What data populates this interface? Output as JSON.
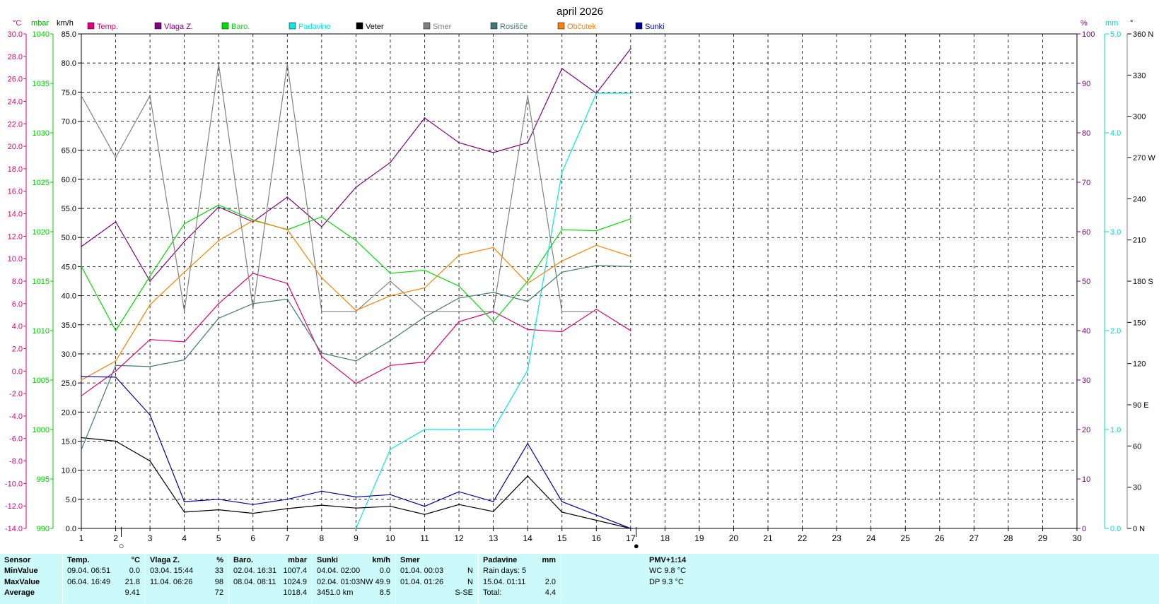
{
  "chart_data": {
    "type": "line",
    "title": "april 2026",
    "x": [
      1,
      2,
      3,
      4,
      5,
      6,
      7,
      8,
      9,
      10,
      11,
      12,
      13,
      14,
      15,
      16,
      17
    ],
    "x_ticks": [
      1,
      2,
      3,
      4,
      5,
      6,
      7,
      8,
      9,
      10,
      11,
      12,
      13,
      14,
      15,
      16,
      17,
      18,
      19,
      20,
      21,
      22,
      23,
      24,
      25,
      26,
      27,
      28,
      29,
      30
    ],
    "xlim": [
      1,
      30
    ],
    "units": {
      "temp": "°C",
      "baro": "mbar",
      "wind": "km/h",
      "hum": "%",
      "rain": "mm",
      "dir": "°"
    },
    "axes": {
      "temp": {
        "range": [
          -14,
          30
        ],
        "ticks": [
          "30.0",
          "28.0",
          "26.0",
          "24.0",
          "22.0",
          "20.0",
          "18.0",
          "16.0",
          "14.0",
          "12.0",
          "10.0",
          "8.0",
          "6.0",
          "4.0",
          "2.0",
          "0.0",
          "-2.0",
          "-4.0",
          "-6.0",
          "-8.0",
          "-10.0",
          "-12.0",
          "-14.0"
        ]
      },
      "baro": {
        "range": [
          990,
          1040
        ],
        "ticks": [
          "1040",
          "1035",
          "1030",
          "1025",
          "1020",
          "1015",
          "1010",
          "1005",
          "1000",
          "995",
          "990"
        ]
      },
      "wind": {
        "range": [
          0,
          85
        ],
        "ticks": [
          "85.0",
          "80.0",
          "75.0",
          "70.0",
          "65.0",
          "60.0",
          "55.0",
          "50.0",
          "45.0",
          "40.0",
          "35.0",
          "30.0",
          "25.0",
          "20.0",
          "15.0",
          "10.0",
          "5.0",
          "0.0"
        ]
      },
      "hum": {
        "range": [
          0,
          100
        ],
        "ticks": [
          "100",
          "90",
          "80",
          "70",
          "60",
          "50",
          "40",
          "30",
          "20",
          "10",
          "0"
        ]
      },
      "rain": {
        "range": [
          0,
          5
        ],
        "ticks": [
          "5.0",
          "4.0",
          "3.0",
          "2.0",
          "1.0",
          "0.0"
        ]
      },
      "dir": {
        "range": [
          0,
          360
        ],
        "ticks": [
          "360 N",
          "330",
          "300",
          "270 W",
          "240",
          "210",
          "180 S",
          "150",
          "120",
          "90 E",
          "60",
          "30",
          "0 N"
        ]
      }
    },
    "legend_position": "top",
    "series": [
      {
        "name": "Temp.",
        "color": "#e0007a",
        "axis": "temp",
        "values": [
          -2.2,
          0.0,
          2.8,
          2.6,
          6.0,
          8.7,
          7.8,
          1.3,
          -1.1,
          0.5,
          0.8,
          4.4,
          5.3,
          3.7,
          3.5,
          5.5,
          3.6
        ]
      },
      {
        "name": "Vlaga Z.",
        "color": "#800080",
        "axis": "hum",
        "values": [
          57,
          62,
          50,
          58,
          65,
          62,
          67,
          61,
          69,
          74,
          83,
          78,
          76,
          78,
          93,
          88,
          97
        ]
      },
      {
        "name": "Baro.",
        "color": "#00dd00",
        "axis": "baro",
        "values": [
          1016.5,
          1010.0,
          1015.5,
          1020.8,
          1022.7,
          1021.2,
          1020.2,
          1021.5,
          1019.1,
          1015.8,
          1016.1,
          1014.5,
          1010.9,
          1015.0,
          1020.2,
          1020.1,
          1021.3
        ]
      },
      {
        "name": "Padavine",
        "color": "#00e8e8",
        "axis": "rain",
        "values": [
          null,
          null,
          null,
          null,
          null,
          null,
          null,
          null,
          0.0,
          0.8,
          1.0,
          1.0,
          1.0,
          1.6,
          3.6,
          4.4,
          4.4
        ]
      },
      {
        "name": "Veter",
        "color": "#000000",
        "axis": "wind",
        "values": [
          15.6,
          15.0,
          11.6,
          2.8,
          3.2,
          2.6,
          3.4,
          4.0,
          3.5,
          3.8,
          2.4,
          4.1,
          2.9,
          9.0,
          2.8,
          1.4,
          0.0
        ]
      },
      {
        "name": "Smer",
        "color": "#808080",
        "axis": "dir",
        "values": [
          315,
          270,
          315,
          158,
          338,
          160,
          338,
          158,
          158,
          180,
          158,
          158,
          158,
          315,
          158,
          158,
          null
        ]
      },
      {
        "name": "Rosišče",
        "color": "#407878",
        "axis": "temp",
        "values": [
          -7.0,
          0.5,
          0.4,
          1.0,
          4.7,
          6.0,
          6.4,
          1.6,
          0.9,
          2.7,
          4.8,
          6.5,
          7.0,
          6.2,
          8.8,
          9.4,
          9.3
        ]
      },
      {
        "name": "Občutek",
        "color": "#ff8000",
        "axis": "temp",
        "values": [
          -0.8,
          0.9,
          5.9,
          8.8,
          11.6,
          13.4,
          12.6,
          8.3,
          5.4,
          6.7,
          7.4,
          10.3,
          11.0,
          7.8,
          9.8,
          11.2,
          10.2
        ]
      },
      {
        "name": "Sunki",
        "color": "#0000a0",
        "axis": "wind",
        "values": [
          26.1,
          26.0,
          19.5,
          4.6,
          5.0,
          4.1,
          5.0,
          6.4,
          5.4,
          5.8,
          3.8,
          6.3,
          4.6,
          14.6,
          4.6,
          2.3,
          0.0
        ]
      }
    ],
    "markers": [
      {
        "day": 2,
        "symbol": "○"
      },
      {
        "day": 17,
        "symbol": "●"
      }
    ]
  },
  "stats": {
    "headers": {
      "sensor": "Sensor",
      "temp": "Temp.",
      "temp_unit": "°C",
      "hum": "Vlaga Z.",
      "hum_unit": "%",
      "baro": "Baro.",
      "baro_unit": "mbar",
      "gust": "Sunki",
      "gust_unit": "km/h",
      "dir": "Smer",
      "rain": "Padavine",
      "rain_unit": "mm",
      "pmv": "PMV+1:14"
    },
    "rows": [
      "MinValue",
      "MaxValue",
      "Average"
    ],
    "temp": {
      "min_time": "09.04.  06:51",
      "min": "0.0",
      "max_time": "06.04.  16:49",
      "max": "21.8",
      "avg": "9.41"
    },
    "hum": {
      "min_time": "03.04.  15:44",
      "min": "33",
      "max_time": "11.04.  06:26",
      "max": "98",
      "avg": "72"
    },
    "baro": {
      "min_time": "02.04.  16:31",
      "min": "1007.4",
      "max_time": "08.04.  08:11",
      "max": "1024.9",
      "avg": "1018.4"
    },
    "gust": {
      "min_time": "04.04.  02:00",
      "min": "0.0",
      "max_time": "02.04.  01:03NW",
      "max": "49.9",
      "avg_label": "3451.0 km",
      "avg": "8.5"
    },
    "dir": {
      "min_time": "01.04.  00:03",
      "min": "N",
      "max_time": "01.04.  01:26",
      "max": "N",
      "avg": "S-SE"
    },
    "rain": {
      "row1": "Rain days: 5",
      "max_time": "15.04.  01:11",
      "max": "2.0",
      "total_label": "Total:",
      "total": "4.4"
    },
    "pmv": {
      "wc": "WC 9.8 °C",
      "dp": "DP 9.3 °C"
    }
  }
}
